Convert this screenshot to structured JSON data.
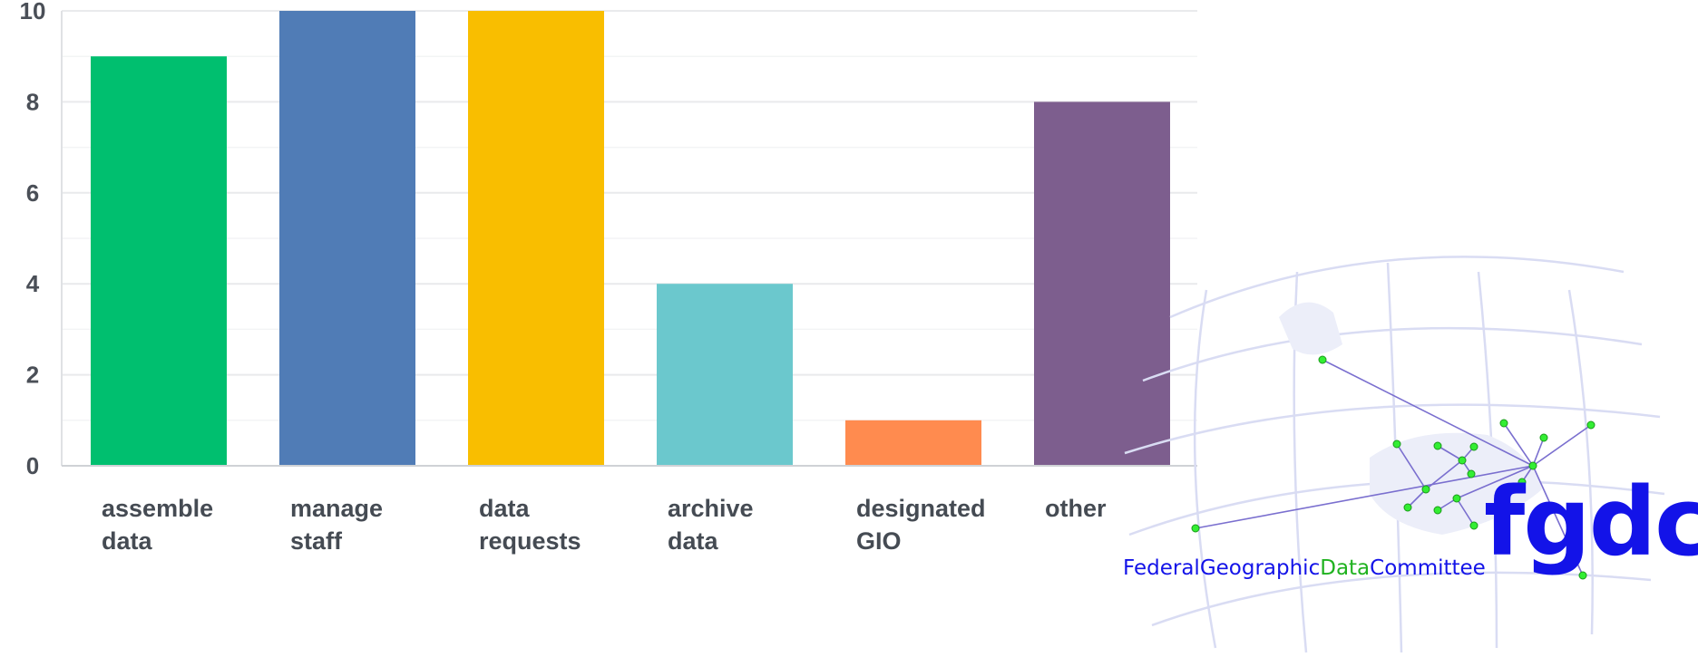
{
  "chart_data": {
    "type": "bar",
    "categories": [
      [
        "assemble",
        "data"
      ],
      [
        "manage",
        "staff"
      ],
      [
        "data",
        "requests"
      ],
      [
        "archive",
        "data"
      ],
      [
        "designated",
        "GIO"
      ],
      [
        "other"
      ]
    ],
    "values": [
      9,
      10,
      10,
      4,
      1,
      8
    ],
    "colors": [
      "#00bf6f",
      "#507cb6",
      "#f9be00",
      "#6bc8cd",
      "#ff8b4f",
      "#7d5e8e"
    ],
    "yticks": [
      0,
      2,
      4,
      6,
      8,
      10
    ],
    "ylim": [
      0,
      10
    ],
    "grid": true,
    "title": "",
    "xlabel": "",
    "ylabel": ""
  },
  "logo": {
    "abbreviation": "fgdc",
    "name_parts": [
      "Federal",
      "Geographic",
      "Data",
      "Committee"
    ],
    "colors": {
      "primary": "#1313e8",
      "accent": "#1fb21f",
      "node": "#33ee33"
    }
  }
}
